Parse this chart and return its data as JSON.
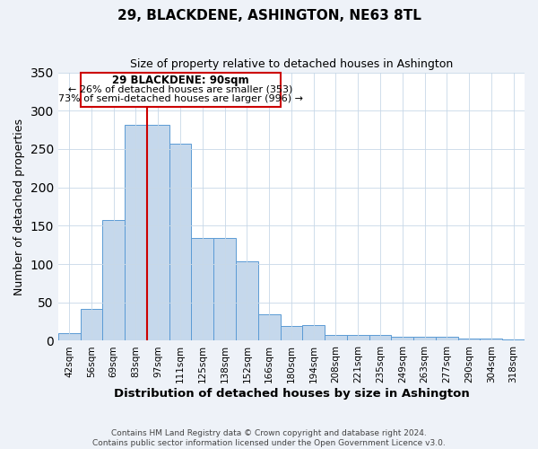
{
  "title": "29, BLACKDENE, ASHINGTON, NE63 8TL",
  "subtitle": "Size of property relative to detached houses in Ashington",
  "xlabel": "Distribution of detached houses by size in Ashington",
  "ylabel": "Number of detached properties",
  "bar_labels": [
    "42sqm",
    "56sqm",
    "69sqm",
    "83sqm",
    "97sqm",
    "111sqm",
    "125sqm",
    "138sqm",
    "152sqm",
    "166sqm",
    "180sqm",
    "194sqm",
    "208sqm",
    "221sqm",
    "235sqm",
    "249sqm",
    "263sqm",
    "277sqm",
    "290sqm",
    "304sqm",
    "318sqm"
  ],
  "bar_heights": [
    10,
    41,
    157,
    281,
    281,
    257,
    134,
    134,
    103,
    35,
    19,
    21,
    8,
    8,
    8,
    5,
    5,
    5,
    3,
    3,
    2
  ],
  "bar_color": "#c5d8ec",
  "bar_edgecolor": "#5b9bd5",
  "ylim": [
    0,
    350
  ],
  "yticks": [
    0,
    50,
    100,
    150,
    200,
    250,
    300,
    350
  ],
  "property_line_label": "29 BLACKDENE: 90sqm",
  "annotation_line1": "← 26% of detached houses are smaller (353)",
  "annotation_line2": "73% of semi-detached houses are larger (996) →",
  "box_color": "#ffffff",
  "box_edgecolor": "#cc0000",
  "line_color": "#cc0000",
  "footer1": "Contains HM Land Registry data © Crown copyright and database right 2024.",
  "footer2": "Contains public sector information licensed under the Open Government Licence v3.0.",
  "background_color": "#eef2f8",
  "plot_bg_color": "#ffffff",
  "grid_color": "#c8d8e8"
}
